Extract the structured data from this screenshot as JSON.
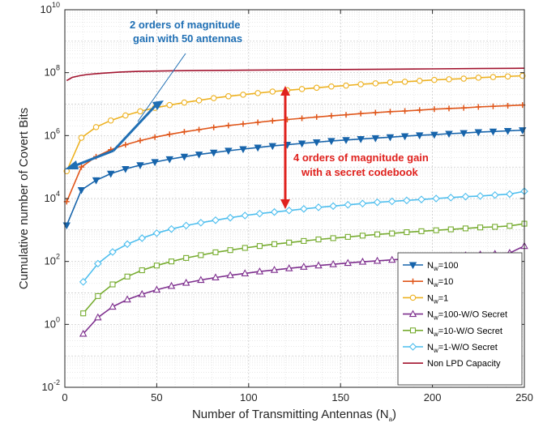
{
  "chart_data": {
    "type": "line",
    "yscale": "log",
    "xlabel_main": "Number of Transmitting Antennas (N",
    "xlabel_sub": "a",
    "xlabel_end": ")",
    "ylabel": "Cumulative number of Covert Bits",
    "xlim": [
      0,
      250
    ],
    "ylim_exponents": [
      -2,
      10
    ],
    "x_ticks": [
      0,
      50,
      100,
      150,
      200,
      250
    ],
    "x_tick_labels": [
      "0",
      "50",
      "100",
      "150",
      "200",
      "250"
    ],
    "y_tick_exponents": [
      -2,
      0,
      2,
      4,
      6,
      8,
      10
    ],
    "y_tick_labels": [
      {
        "base": "10",
        "exp": "-2"
      },
      {
        "base": "10",
        "exp": "0"
      },
      {
        "base": "10",
        "exp": "2"
      },
      {
        "base": "10",
        "exp": "4"
      },
      {
        "base": "10",
        "exp": "6"
      },
      {
        "base": "10",
        "exp": "8"
      },
      {
        "base": "10",
        "exp": "10"
      }
    ],
    "grid": true,
    "legend_position": "bottom-right",
    "series": [
      {
        "name": "Nw=100",
        "legend_main": "N",
        "legend_sub": "w",
        "legend_rest": "=100",
        "color": "#1764ab",
        "marker": "triangle-down",
        "filled": true,
        "x": [
          1,
          9,
          17,
          25,
          33,
          41,
          49,
          57,
          65,
          73,
          81,
          89,
          97,
          105,
          113,
          121,
          129,
          137,
          145,
          153,
          161,
          169,
          177,
          185,
          193,
          201,
          209,
          217,
          225,
          233,
          241,
          249
        ],
        "y_log10": [
          3.15,
          4.27,
          4.58,
          4.79,
          4.94,
          5.06,
          5.16,
          5.25,
          5.33,
          5.4,
          5.46,
          5.52,
          5.57,
          5.62,
          5.67,
          5.71,
          5.75,
          5.79,
          5.83,
          5.86,
          5.89,
          5.92,
          5.95,
          5.98,
          6.01,
          6.03,
          6.06,
          6.08,
          6.11,
          6.13,
          6.15,
          6.17
        ]
      },
      {
        "name": "Nw=10",
        "legend_main": "N",
        "legend_sub": "w",
        "legend_rest": "=10",
        "color": "#e0561a",
        "marker": "plus",
        "filled": false,
        "x": [
          1,
          9,
          17,
          25,
          33,
          41,
          49,
          57,
          65,
          73,
          81,
          89,
          97,
          105,
          113,
          121,
          129,
          137,
          145,
          153,
          161,
          169,
          177,
          185,
          193,
          201,
          209,
          217,
          225,
          233,
          241,
          249
        ],
        "y_log10": [
          3.9,
          5.0,
          5.33,
          5.55,
          5.71,
          5.84,
          5.95,
          6.04,
          6.12,
          6.19,
          6.26,
          6.32,
          6.37,
          6.42,
          6.47,
          6.51,
          6.55,
          6.59,
          6.63,
          6.66,
          6.7,
          6.73,
          6.76,
          6.78,
          6.81,
          6.84,
          6.86,
          6.88,
          6.91,
          6.93,
          6.95,
          6.97
        ]
      },
      {
        "name": "Nw=1",
        "legend_main": "N",
        "legend_sub": "w",
        "legend_rest": "=1",
        "color": "#edb120",
        "marker": "circle",
        "filled": false,
        "x": [
          1,
          9,
          17,
          25,
          33,
          41,
          49,
          57,
          65,
          73,
          81,
          89,
          97,
          105,
          113,
          121,
          129,
          137,
          145,
          153,
          161,
          169,
          177,
          185,
          193,
          201,
          209,
          217,
          225,
          233,
          241,
          249
        ],
        "y_log10": [
          4.87,
          5.93,
          6.27,
          6.48,
          6.64,
          6.77,
          6.88,
          6.97,
          7.05,
          7.12,
          7.19,
          7.25,
          7.3,
          7.35,
          7.4,
          7.44,
          7.48,
          7.52,
          7.56,
          7.59,
          7.63,
          7.66,
          7.69,
          7.71,
          7.74,
          7.77,
          7.79,
          7.81,
          7.84,
          7.86,
          7.88,
          7.9
        ]
      },
      {
        "name": "Nw=100-W/O Secret",
        "legend_main": "N",
        "legend_sub": "w",
        "legend_rest": "=100-W/O Secret",
        "color": "#7e2f8e",
        "marker": "triangle-up",
        "filled": false,
        "x": [
          10,
          18,
          26,
          34,
          42,
          50,
          58,
          66,
          74,
          82,
          90,
          98,
          106,
          114,
          122,
          130,
          138,
          146,
          154,
          162,
          170,
          178,
          186,
          194,
          202,
          210,
          218,
          226,
          234,
          242,
          250
        ],
        "y_log10": [
          -0.3,
          0.22,
          0.56,
          0.79,
          0.96,
          1.1,
          1.22,
          1.32,
          1.41,
          1.49,
          1.56,
          1.62,
          1.68,
          1.73,
          1.78,
          1.83,
          1.87,
          1.91,
          1.95,
          1.99,
          2.02,
          2.05,
          2.08,
          2.11,
          2.14,
          2.17,
          2.19,
          2.22,
          2.24,
          2.27,
          2.49
        ]
      },
      {
        "name": "Nw=10-W/O Secret",
        "legend_main": "N",
        "legend_sub": "w",
        "legend_rest": "=10-W/O Secret",
        "color": "#77ac30",
        "marker": "square",
        "filled": false,
        "x": [
          10,
          18,
          26,
          34,
          42,
          50,
          58,
          66,
          74,
          82,
          90,
          98,
          106,
          114,
          122,
          130,
          138,
          146,
          154,
          162,
          170,
          178,
          186,
          194,
          202,
          210,
          218,
          226,
          234,
          242,
          250
        ],
        "y_log10": [
          0.35,
          0.9,
          1.27,
          1.52,
          1.72,
          1.87,
          2.0,
          2.11,
          2.2,
          2.29,
          2.36,
          2.43,
          2.49,
          2.55,
          2.6,
          2.65,
          2.7,
          2.74,
          2.78,
          2.82,
          2.86,
          2.89,
          2.93,
          2.96,
          2.99,
          3.02,
          3.05,
          3.08,
          3.1,
          3.13,
          3.2
        ]
      },
      {
        "name": "Nw=1-W/O Secret",
        "legend_main": "N",
        "legend_sub": "w",
        "legend_rest": "=1-W/O Secret",
        "color": "#4dbeee",
        "marker": "diamond",
        "filled": false,
        "x": [
          10,
          18,
          26,
          34,
          42,
          50,
          58,
          66,
          74,
          82,
          90,
          98,
          106,
          114,
          122,
          130,
          138,
          146,
          154,
          162,
          170,
          178,
          186,
          194,
          202,
          210,
          218,
          226,
          234,
          242,
          250
        ],
        "y_log10": [
          1.35,
          1.93,
          2.3,
          2.55,
          2.74,
          2.9,
          3.03,
          3.14,
          3.23,
          3.31,
          3.39,
          3.46,
          3.52,
          3.57,
          3.62,
          3.67,
          3.72,
          3.76,
          3.8,
          3.84,
          3.88,
          3.91,
          3.94,
          3.97,
          4.0,
          4.03,
          4.06,
          4.08,
          4.11,
          4.14,
          4.23
        ]
      },
      {
        "name": "Non LPD Capacity",
        "legend_main": "Non LPD Capacity",
        "legend_sub": "",
        "legend_rest": "",
        "color": "#a2142f",
        "marker": "none",
        "filled": false,
        "x": [
          1,
          4,
          8,
          12,
          16,
          20,
          25,
          30,
          40,
          50,
          60,
          80,
          100,
          125,
          150,
          175,
          200,
          225,
          250
        ],
        "y_log10": [
          7.75,
          7.85,
          7.9,
          7.94,
          7.96,
          7.98,
          8.0,
          8.02,
          8.04,
          8.05,
          8.06,
          8.07,
          8.08,
          8.09,
          8.1,
          8.11,
          8.12,
          8.13,
          8.14
        ]
      }
    ],
    "annotations": [
      {
        "id": "blue",
        "line1": "2 orders of magnitude",
        "line2": "gain with 50 antennas",
        "color": "#1f6fb4"
      },
      {
        "id": "red",
        "line1": "4 orders of magnitude gain",
        "line2": "with a secret codebook",
        "color": "#e0221e"
      }
    ]
  }
}
